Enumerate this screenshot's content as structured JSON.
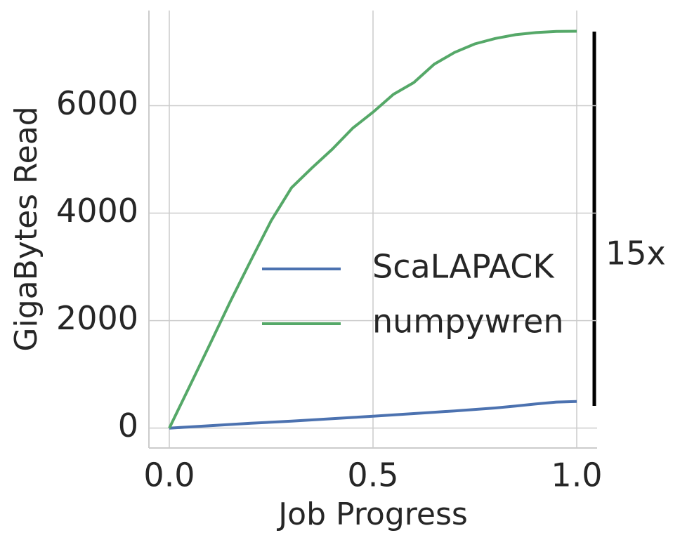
{
  "chart_data": {
    "type": "line",
    "x_label": "Job Progress",
    "y_label": "GigaBytes Read",
    "x": [
      0,
      0.05,
      0.1,
      0.15,
      0.2,
      0.25,
      0.3,
      0.35,
      0.4,
      0.45,
      0.5,
      0.55,
      0.6,
      0.65,
      0.7,
      0.75,
      0.8,
      0.85,
      0.9,
      0.95,
      1.0
    ],
    "series": [
      {
        "name": "ScaLAPACK",
        "color": "#4c72b0",
        "values": [
          0,
          22,
          45,
          68,
          90,
          110,
          130,
          152,
          175,
          198,
          220,
          245,
          270,
          295,
          320,
          347,
          375,
          410,
          450,
          485,
          495
        ]
      },
      {
        "name": "numpywren",
        "color": "#55a868",
        "values": [
          0,
          780,
          1565,
          2360,
          3117,
          3860,
          4474,
          4840,
          5190,
          5580,
          5880,
          6210,
          6430,
          6770,
          6990,
          7150,
          7250,
          7320,
          7360,
          7380,
          7385
        ]
      }
    ],
    "xlim": [
      -0.05,
      1.05
    ],
    "ylim": [
      -370,
      7770
    ],
    "xticks": [
      {
        "value": 0,
        "label": "0.0"
      },
      0.5,
      {
        "value": 1,
        "label": "1.0"
      }
    ],
    "yticks": [
      0,
      2000,
      4000,
      6000
    ],
    "grid": true,
    "legend": "center right",
    "annotation": "15x"
  }
}
